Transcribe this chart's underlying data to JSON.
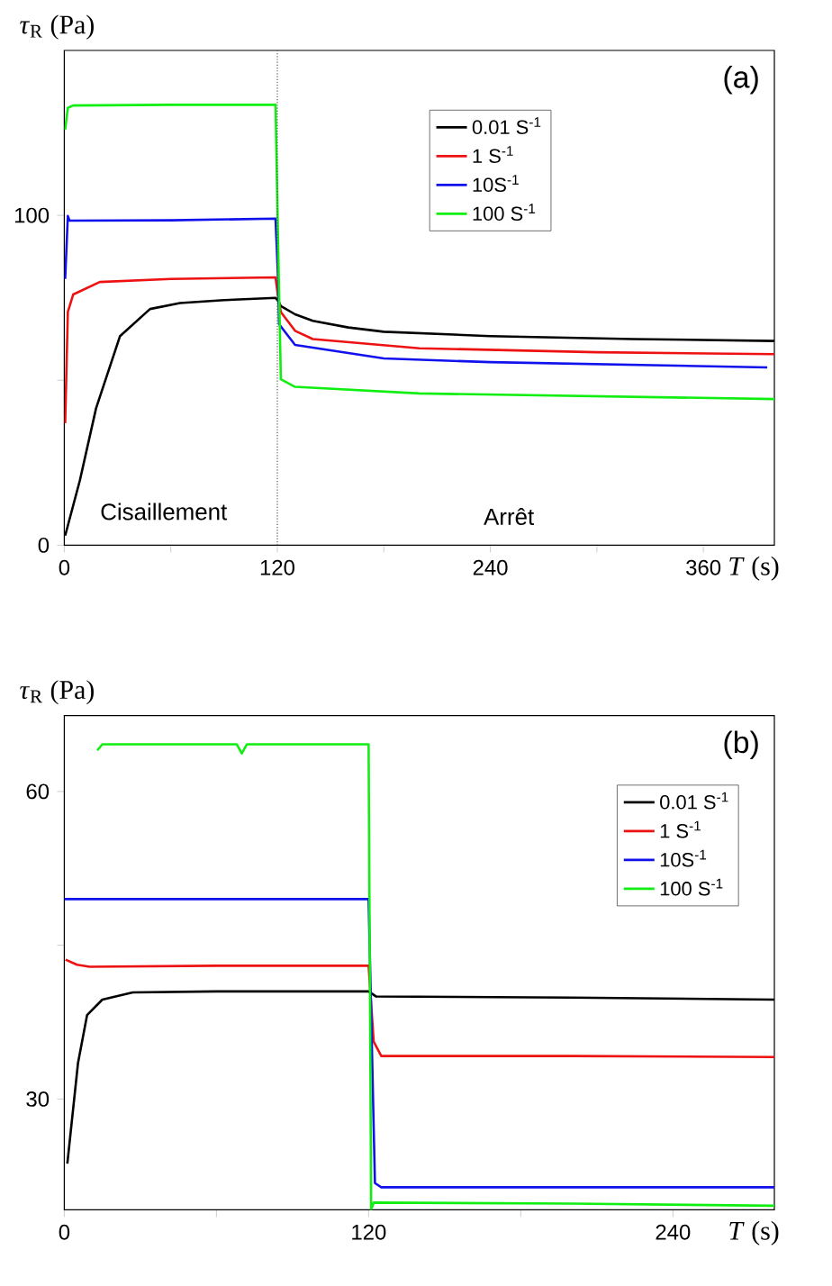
{
  "chart_data": [
    {
      "type": "line",
      "xlabel": "*T* (s)",
      "ylabel": "*τ*$_{R}$ (Pa)",
      "xlim": [
        0,
        400
      ],
      "ylim": [
        0,
        150
      ],
      "xticks": [
        0,
        {
          "value": 60,
          "label": null
        },
        120,
        {
          "value": 180,
          "label": null
        },
        240,
        {
          "value": 300,
          "label": null
        },
        360
      ],
      "yticks": [
        0,
        {
          "value": 50,
          "label": null
        },
        100
      ],
      "legend": "top",
      "ref_lines": [
        {
          "axis": "x",
          "value": 120,
          "color": "#555555",
          "line_style": "dotted"
        }
      ],
      "annotations": [
        "(a)",
        "Cisaillement",
        "Arrêt"
      ],
      "series": [
        {
          "name": "0.01 S$^{-1}$",
          "color": "#000000",
          "x": [
            0.5,
            8.8,
            17.9,
            31.4,
            48.3,
            65.2,
            90,
            119,
            120.5,
            122,
            130,
            140,
            160,
            180,
            240,
            320,
            400
          ],
          "values": [
            2.9,
            19.7,
            41.5,
            63.4,
            71.6,
            73.4,
            74.3,
            75,
            74,
            72.5,
            70,
            68,
            66,
            64.7,
            63.4,
            62.5,
            61.9
          ]
        },
        {
          "name": "1 S$^{-1}$",
          "color": "#ee1111",
          "x": [
            0.5,
            2,
            5,
            20,
            60,
            119,
            120.5,
            122,
            130,
            140,
            200,
            300,
            400
          ],
          "values": [
            37,
            70.7,
            76,
            79.8,
            80.7,
            81.2,
            75,
            70.7,
            65,
            62.5,
            59.7,
            58.5,
            57.9
          ]
        },
        {
          "name": "10S$^{-1}$",
          "color": "#1111ee",
          "x": [
            0.5,
            2,
            3,
            60,
            119,
            120.5,
            121,
            130,
            180,
            240,
            396
          ],
          "values": [
            80.7,
            99.8,
            98.4,
            98.5,
            99,
            80,
            67,
            60.7,
            56.6,
            55.5,
            53.9
          ]
        },
        {
          "name": "100 S$^{-1}$",
          "color": "#11ee11",
          "x": [
            0.5,
            2,
            5,
            60,
            119,
            120.5,
            122,
            130,
            200,
            400
          ],
          "values": [
            126,
            132.6,
            133.3,
            133.5,
            133.5,
            90,
            50.3,
            48,
            46,
            44.3
          ]
        }
      ]
    },
    {
      "type": "line",
      "xlabel": "*T* (s)",
      "ylabel": "*τ*$_{R}$ (Pa)",
      "xlim": [
        0,
        280
      ],
      "ylim": [
        19.2,
        67.4
      ],
      "xticks": [
        0,
        {
          "value": 60,
          "label": null
        },
        120,
        {
          "value": 180,
          "label": null
        },
        240
      ],
      "yticks": [
        30,
        {
          "value": 45,
          "label": null
        },
        60
      ],
      "legend": "top right",
      "annotations": [
        "(b)"
      ],
      "series": [
        {
          "name": "0.01 S$^{-1}$",
          "color": "#000000",
          "x": [
            1.2,
            5.4,
            9,
            15,
            27,
            60,
            120,
            123,
            200,
            280
          ],
          "values": [
            23.7,
            33.5,
            38.2,
            39.7,
            40.4,
            40.5,
            40.5,
            40,
            39.9,
            39.7
          ]
        },
        {
          "name": "1 S$^{-1}$",
          "color": "#ee1111",
          "x": [
            0.5,
            5,
            10,
            60,
            120,
            122,
            125,
            200,
            280
          ],
          "values": [
            43.6,
            43.1,
            42.9,
            43,
            43,
            35.6,
            34.2,
            34.2,
            34.1
          ]
        },
        {
          "name": "10S$^{-1}$",
          "color": "#1111ee",
          "x": [
            0,
            60,
            120,
            122.5,
            125,
            200,
            280
          ],
          "values": [
            49.5,
            49.5,
            49.5,
            21.8,
            21.4,
            21.4,
            21.4
          ]
        },
        {
          "name": "100 S$^{-1}$",
          "color": "#11ee11",
          "x": [
            13,
            15,
            68,
            70,
            72,
            120,
            121,
            122,
            200,
            280
          ],
          "values": [
            64,
            64.6,
            64.6,
            63.7,
            64.6,
            64.6,
            19.2,
            19.9,
            19.8,
            19.6
          ]
        }
      ]
    }
  ]
}
